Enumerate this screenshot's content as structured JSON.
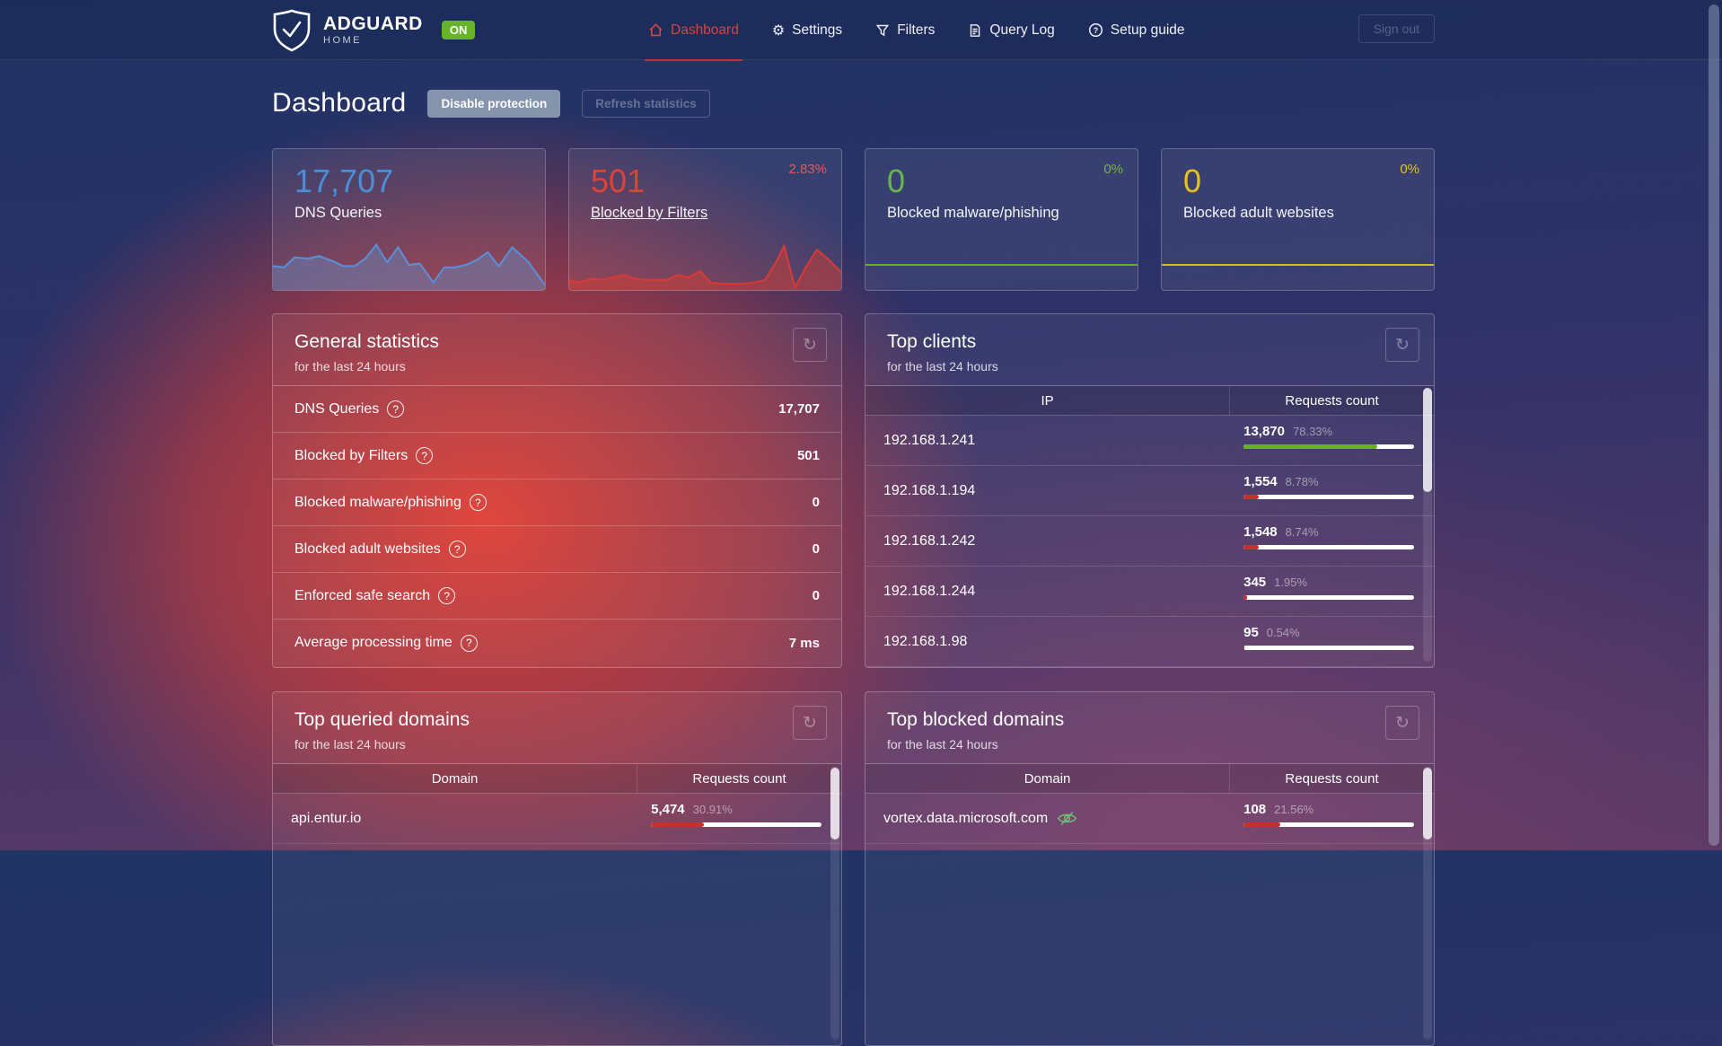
{
  "nav": {
    "logo": {
      "title": "ADGUARD",
      "subtitle": "HOME",
      "status_badge": "ON"
    },
    "items": [
      {
        "label": "Dashboard",
        "icon": "home-icon",
        "active": true
      },
      {
        "label": "Settings",
        "icon": "gear-icon",
        "active": false
      },
      {
        "label": "Filters",
        "icon": "funnel-icon",
        "active": false
      },
      {
        "label": "Query Log",
        "icon": "document-icon",
        "active": false
      },
      {
        "label": "Setup guide",
        "icon": "question-circle-icon",
        "active": false
      }
    ],
    "sign_out_label": "Sign out"
  },
  "header": {
    "title": "Dashboard",
    "disable_protection_label": "Disable protection",
    "refresh_statistics_label": "Refresh statistics"
  },
  "stat_cards": [
    {
      "value": "17,707",
      "label": "DNS Queries",
      "percent": "",
      "value_color": "#4a8ed8",
      "percent_color": "",
      "link": false,
      "sparkline": "dns"
    },
    {
      "value": "501",
      "label": "Blocked by Filters",
      "percent": "2.83%",
      "value_color": "#de4337",
      "percent_color": "#e05c51",
      "link": true,
      "sparkline": "blocked"
    },
    {
      "value": "0",
      "label": "Blocked malware/phishing",
      "percent": "0%",
      "value_color": "#68b54e",
      "percent_color": "#7cb342",
      "link": false,
      "line_color": "#5db52c"
    },
    {
      "value": "0",
      "label": "Blocked adult websites",
      "percent": "0%",
      "value_color": "#e6c119",
      "percent_color": "#e0c030",
      "link": false,
      "line_color": "#dfb32a"
    }
  ],
  "sparklines": {
    "dns": {
      "color": "#5b8fd9",
      "fill": "rgba(104,128,178,0.55)",
      "points": [
        [
          0,
          21
        ],
        [
          4,
          22
        ],
        [
          8,
          14
        ],
        [
          13,
          15
        ],
        [
          17,
          13
        ],
        [
          22,
          17
        ],
        [
          26,
          21
        ],
        [
          30,
          21
        ],
        [
          34,
          15
        ],
        [
          38,
          4
        ],
        [
          42,
          18
        ],
        [
          46,
          6
        ],
        [
          50,
          20
        ],
        [
          54,
          19
        ],
        [
          59,
          34
        ],
        [
          63,
          22
        ],
        [
          67,
          22
        ],
        [
          71,
          20
        ],
        [
          75,
          16
        ],
        [
          79,
          10
        ],
        [
          83,
          21
        ],
        [
          88,
          6
        ],
        [
          94,
          18
        ],
        [
          100,
          36
        ]
      ]
    },
    "blocked": {
      "color": "#d93a36",
      "fill": "rgba(210,62,52,0.50)",
      "points": [
        [
          0,
          32
        ],
        [
          4,
          34
        ],
        [
          8,
          31
        ],
        [
          12,
          32
        ],
        [
          16,
          30
        ],
        [
          20,
          28
        ],
        [
          24,
          31
        ],
        [
          28,
          32
        ],
        [
          32,
          32
        ],
        [
          36,
          32
        ],
        [
          40,
          28
        ],
        [
          44,
          30
        ],
        [
          48,
          25
        ],
        [
          52,
          34
        ],
        [
          56,
          35
        ],
        [
          60,
          35
        ],
        [
          64,
          35
        ],
        [
          68,
          34
        ],
        [
          72,
          32
        ],
        [
          76,
          18
        ],
        [
          79,
          5
        ],
        [
          83,
          38
        ],
        [
          87,
          22
        ],
        [
          91,
          8
        ],
        [
          95,
          15
        ],
        [
          100,
          26
        ]
      ]
    }
  },
  "general_statistics": {
    "title": "General statistics",
    "subtitle": "for the last 24 hours",
    "refresh_icon": "refresh-icon",
    "rows": [
      {
        "label": "DNS Queries",
        "value": "17,707"
      },
      {
        "label": "Blocked by Filters",
        "value": "501"
      },
      {
        "label": "Blocked malware/phishing",
        "value": "0"
      },
      {
        "label": "Blocked adult websites",
        "value": "0"
      },
      {
        "label": "Enforced safe search",
        "value": "0"
      },
      {
        "label": "Average processing time",
        "value": "7 ms"
      }
    ]
  },
  "top_clients": {
    "title": "Top clients",
    "subtitle": "for the last 24 hours",
    "columns": [
      "IP",
      "Requests count"
    ],
    "rows": [
      {
        "ip": "192.168.1.241",
        "count": "13,870",
        "percent": "78.33%",
        "bar_percent": 78.33,
        "bar_color": "#67b21e"
      },
      {
        "ip": "192.168.1.194",
        "count": "1,554",
        "percent": "8.78%",
        "bar_percent": 8.78,
        "bar_color": "#c9302c"
      },
      {
        "ip": "192.168.1.242",
        "count": "1,548",
        "percent": "8.74%",
        "bar_percent": 8.74,
        "bar_color": "#c9302c"
      },
      {
        "ip": "192.168.1.244",
        "count": "345",
        "percent": "1.95%",
        "bar_percent": 1.95,
        "bar_color": "#c9302c"
      },
      {
        "ip": "192.168.1.98",
        "count": "95",
        "percent": "0.54%",
        "bar_percent": 0.54,
        "bar_color": "#c9302c"
      }
    ]
  },
  "top_queried_domains": {
    "title": "Top queried domains",
    "subtitle": "for the last 24 hours",
    "columns": [
      "Domain",
      "Requests count"
    ],
    "rows": [
      {
        "domain": "api.entur.io",
        "icon": "",
        "count": "5,474",
        "percent": "30.91%",
        "bar_percent": 30.91,
        "bar_color": "#c9302c"
      }
    ]
  },
  "top_blocked_domains": {
    "title": "Top blocked domains",
    "subtitle": "for the last 24 hours",
    "columns": [
      "Domain",
      "Requests count"
    ],
    "rows": [
      {
        "domain": "vortex.data.microsoft.com",
        "icon": "eye-slash-icon",
        "count": "108",
        "percent": "21.56%",
        "bar_percent": 21.56,
        "bar_color": "#c9302c"
      }
    ]
  },
  "colors": {
    "accent_red": "#d7443e",
    "badge_green": "#67b32a",
    "bar_green": "#67b21e",
    "bar_red": "#c9302c"
  }
}
